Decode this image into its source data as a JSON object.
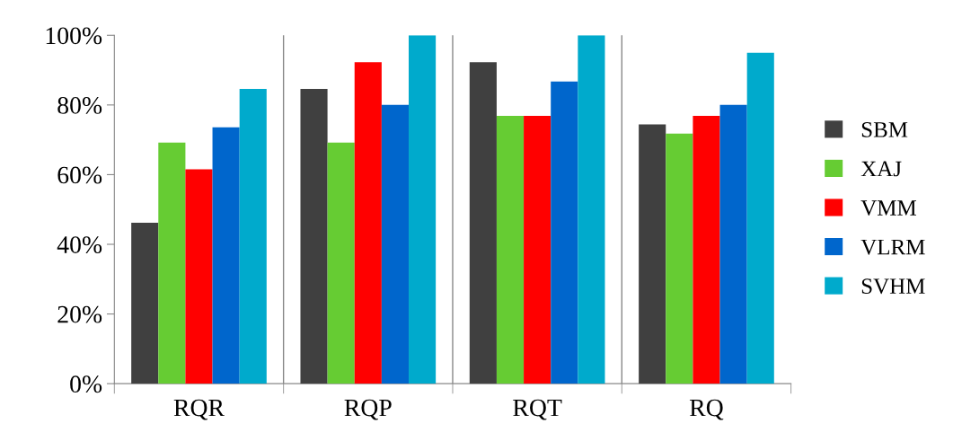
{
  "chart_data": {
    "type": "bar",
    "categories": [
      "RQR",
      "RQP",
      "RQT",
      "RQ"
    ],
    "series": [
      {
        "name": "SBM",
        "color": "#404040",
        "values": [
          46.2,
          84.6,
          92.3,
          74.4
        ]
      },
      {
        "name": "XAJ",
        "color": "#66cc33",
        "values": [
          69.2,
          69.2,
          76.9,
          71.8
        ]
      },
      {
        "name": "VMM",
        "color": "#ff0000",
        "values": [
          61.5,
          92.3,
          76.9,
          76.9
        ]
      },
      {
        "name": "VLRM",
        "color": "#0066cc",
        "values": [
          73.6,
          80,
          86.7,
          80
        ]
      },
      {
        "name": "SVHM",
        "color": "#00aacc",
        "values": [
          84.6,
          100,
          100,
          95
        ]
      }
    ],
    "ylim": [
      0,
      100
    ],
    "yticks": [
      {
        "value": 0,
        "label": "0%"
      },
      {
        "value": 20,
        "label": "20%"
      },
      {
        "value": 40,
        "label": "40%"
      },
      {
        "value": 60,
        "label": "60%"
      },
      {
        "value": 80,
        "label": "80%"
      },
      {
        "value": 100,
        "label": "100%"
      }
    ],
    "grid": "x",
    "legend": "right"
  }
}
